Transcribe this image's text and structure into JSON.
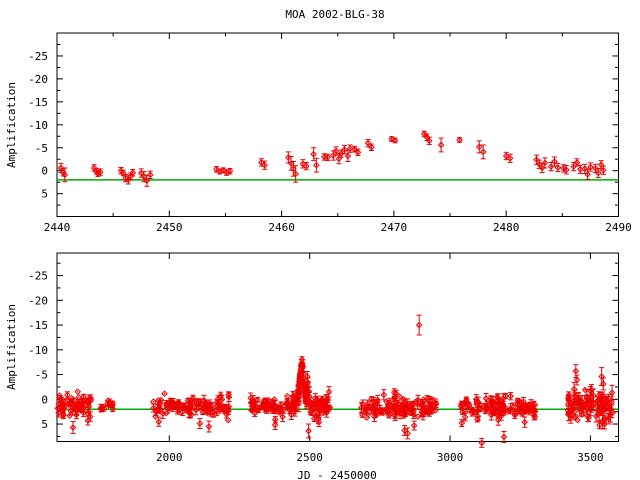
{
  "title": "MOA 2002-BLG-38",
  "colors": {
    "data": "#ee0000",
    "baseline": "#00ab00",
    "axis": "#000000",
    "background": "#ffffff"
  },
  "chart_data": [
    {
      "type": "scatter",
      "name": "top-panel-zoom-on-event",
      "ylabel": "Amplification",
      "xlabel": "",
      "x_range": [
        2440,
        2490
      ],
      "y_range": [
        -30,
        10
      ],
      "y_inverted": true,
      "x_ticks": [
        2440,
        2450,
        2460,
        2470,
        2480,
        2490
      ],
      "x_minor_step": 5,
      "y_ticks": [
        -25,
        -20,
        -15,
        -10,
        -5,
        0,
        5
      ],
      "y_minor_step": 2.5,
      "baseline_value": 2,
      "marker": "open-diamond-with-errorbars",
      "points_jd_v_err": [
        [
          2440.35,
          -0.6,
          1.0
        ],
        [
          2440.55,
          0.35,
          0.8
        ],
        [
          2440.7,
          0.9,
          1.5
        ],
        [
          2443.3,
          -0.6,
          0.7
        ],
        [
          2443.5,
          0.1,
          0.6
        ],
        [
          2443.65,
          0.65,
          0.6
        ],
        [
          2443.85,
          0.3,
          0.7
        ],
        [
          2445.7,
          0.0,
          0.7
        ],
        [
          2445.9,
          0.5,
          0.6
        ],
        [
          2446.1,
          1.6,
          0.8
        ],
        [
          2446.35,
          2.0,
          0.9
        ],
        [
          2446.55,
          1.2,
          0.7
        ],
        [
          2446.75,
          0.45,
          0.7
        ],
        [
          2447.5,
          0.5,
          0.9
        ],
        [
          2447.75,
          1.3,
          1.1
        ],
        [
          2448.0,
          2.2,
          1.2
        ],
        [
          2448.3,
          0.9,
          0.8
        ],
        [
          2454.2,
          -0.3,
          0.6
        ],
        [
          2454.5,
          0.2,
          0.5
        ],
        [
          2454.8,
          -0.1,
          0.5
        ],
        [
          2455.1,
          0.4,
          0.6
        ],
        [
          2455.4,
          0.1,
          0.6
        ],
        [
          2458.2,
          -1.8,
          0.8
        ],
        [
          2458.5,
          -1.2,
          0.9
        ],
        [
          2460.6,
          -2.9,
          1.2
        ],
        [
          2460.85,
          -1.6,
          1.5
        ],
        [
          2461.05,
          -0.4,
          1.6
        ],
        [
          2461.25,
          0.7,
          1.8
        ],
        [
          2461.9,
          -1.5,
          0.9
        ],
        [
          2462.2,
          -1.0,
          0.8
        ],
        [
          2462.85,
          -3.6,
          1.4
        ],
        [
          2463.1,
          -1.2,
          1.5
        ],
        [
          2463.8,
          -3.0,
          0.7
        ],
        [
          2464.1,
          -2.9,
          0.7
        ],
        [
          2464.6,
          -3.3,
          1.0
        ],
        [
          2464.85,
          -4.3,
          0.9
        ],
        [
          2465.1,
          -2.6,
          1.1
        ],
        [
          2465.3,
          -3.7,
          0.8
        ],
        [
          2465.6,
          -4.6,
          0.9
        ],
        [
          2465.9,
          -3.2,
          1.2
        ],
        [
          2466.1,
          -4.8,
          0.8
        ],
        [
          2466.5,
          -4.7,
          0.6
        ],
        [
          2466.8,
          -4.0,
          0.7
        ],
        [
          2467.7,
          -6.0,
          0.8
        ],
        [
          2468.0,
          -5.1,
          0.7
        ],
        [
          2469.8,
          -6.9,
          0.5
        ],
        [
          2470.1,
          -6.6,
          0.5
        ],
        [
          2472.7,
          -8.0,
          0.6
        ],
        [
          2472.95,
          -7.3,
          0.7
        ],
        [
          2473.15,
          -6.5,
          0.8
        ],
        [
          2474.2,
          -5.6,
          1.5
        ],
        [
          2475.85,
          -6.7,
          0.5
        ],
        [
          2477.6,
          -5.2,
          1.3
        ],
        [
          2477.95,
          -4.1,
          1.5
        ],
        [
          2480.0,
          -3.2,
          0.8
        ],
        [
          2480.35,
          -2.7,
          0.9
        ],
        [
          2482.7,
          -2.4,
          1.0
        ],
        [
          2482.95,
          -1.4,
          0.9
        ],
        [
          2483.2,
          -0.6,
          1.0
        ],
        [
          2483.45,
          -1.7,
          1.1
        ],
        [
          2484.0,
          -0.9,
          0.9
        ],
        [
          2484.3,
          -2.0,
          1.0
        ],
        [
          2484.6,
          -0.7,
          0.9
        ],
        [
          2485.1,
          -0.5,
          0.8
        ],
        [
          2485.35,
          -0.2,
          0.9
        ],
        [
          2486.0,
          -0.9,
          0.9
        ],
        [
          2486.3,
          -1.8,
          0.8
        ],
        [
          2486.6,
          -0.3,
          0.9
        ],
        [
          2487.0,
          -0.4,
          1.0
        ],
        [
          2487.25,
          0.8,
          1.1
        ],
        [
          2487.5,
          -0.8,
          0.9
        ],
        [
          2487.95,
          -0.5,
          0.9
        ],
        [
          2488.2,
          0.5,
          1.0
        ],
        [
          2488.45,
          -1.3,
          0.9
        ],
        [
          2488.65,
          -0.1,
          0.9
        ]
      ]
    },
    {
      "type": "scatter",
      "name": "bottom-panel-full-lightcurve",
      "ylabel": "Amplification",
      "xlabel": "JD - 2450000",
      "x_range": [
        1600,
        3600
      ],
      "y_range": [
        -30,
        10
      ],
      "y_inverted": true,
      "x_ticks": [
        2000,
        2500,
        3000,
        3500
      ],
      "x_minor_step": 0,
      "y_ticks": [
        -25,
        -20,
        -15,
        -10,
        -5,
        0,
        5
      ],
      "y_minor_step": 2.5,
      "baseline_value": 2,
      "marker": "open-diamond-with-errorbars",
      "includes_top_panel_points": true,
      "seasons": [
        {
          "jd_start": 1600,
          "jd_end": 1724,
          "n": 60,
          "v_mean": 1.4,
          "v_sd": 1.0,
          "v_min": -1.6,
          "v_max": 4.4,
          "err_base": 0.7
        },
        {
          "jd_start": 1753,
          "jd_end": 1801,
          "n": 12,
          "v_mean": 1.4,
          "v_sd": 0.6,
          "v_min": -0.5,
          "v_max": 3.0,
          "err_base": 0.6
        },
        {
          "jd_start": 1943,
          "jd_end": 2215,
          "n": 105,
          "v_mean": 1.6,
          "v_sd": 1.0,
          "v_min": -1.2,
          "v_max": 4.6,
          "err_base": 0.7
        },
        {
          "jd_start": 2290,
          "jd_end": 2437,
          "n": 65,
          "v_mean": 1.4,
          "v_sd": 1.0,
          "v_min": -1.5,
          "v_max": 4.2,
          "err_base": 0.7
        },
        {
          "jd_start": 2500,
          "jd_end": 2575,
          "n": 42,
          "v_mean": 1.7,
          "v_sd": 1.2,
          "v_min": -1.5,
          "v_max": 5.0,
          "err_base": 0.8
        },
        {
          "jd_start": 2683,
          "jd_end": 2950,
          "n": 115,
          "v_mean": 1.6,
          "v_sd": 1.1,
          "v_min": -3.3,
          "v_max": 5.0,
          "err_base": 0.7
        },
        {
          "jd_start": 3035,
          "jd_end": 3313,
          "n": 105,
          "v_mean": 1.5,
          "v_sd": 1.1,
          "v_min": -2.5,
          "v_max": 4.8,
          "err_base": 0.7
        },
        {
          "jd_start": 3420,
          "jd_end": 3580,
          "n": 95,
          "v_mean": 1.4,
          "v_sd": 1.6,
          "v_min": -5.0,
          "v_max": 5.2,
          "err_base": 1.0
        }
      ],
      "extra_points_jd_v_err": [
        [
          2492,
          -4.6,
          1.0
        ],
        [
          2493.5,
          -3.4,
          0.9
        ],
        [
          2495,
          -2.6,
          0.9
        ],
        [
          2497,
          -1.6,
          0.8
        ],
        [
          2499,
          -0.6,
          0.8
        ],
        [
          2501,
          0.4,
          0.7
        ],
        [
          2503,
          1.0,
          0.7
        ],
        [
          1657,
          5.7,
          1.2
        ],
        [
          1710,
          4.3,
          0.9
        ],
        [
          2109,
          4.9,
          1.0
        ],
        [
          2141,
          5.5,
          1.1
        ],
        [
          2377,
          5.2,
          0.9
        ],
        [
          2496,
          6.4,
          1.4
        ],
        [
          2533,
          4.6,
          0.9
        ],
        [
          2838,
          6.3,
          1.0
        ],
        [
          2849,
          6.9,
          1.1
        ],
        [
          2872,
          5.3,
          0.9
        ],
        [
          3113,
          8.8,
          0.9
        ],
        [
          3192,
          7.6,
          1.1
        ],
        [
          3448,
          -5.7,
          1.3
        ],
        [
          3452,
          -3.9,
          1.0
        ],
        [
          3540,
          -4.6,
          1.8
        ],
        [
          3546,
          -3.1,
          1.2
        ]
      ],
      "outlier_jd_v_err": [
        2890,
        -15,
        2
      ]
    }
  ]
}
